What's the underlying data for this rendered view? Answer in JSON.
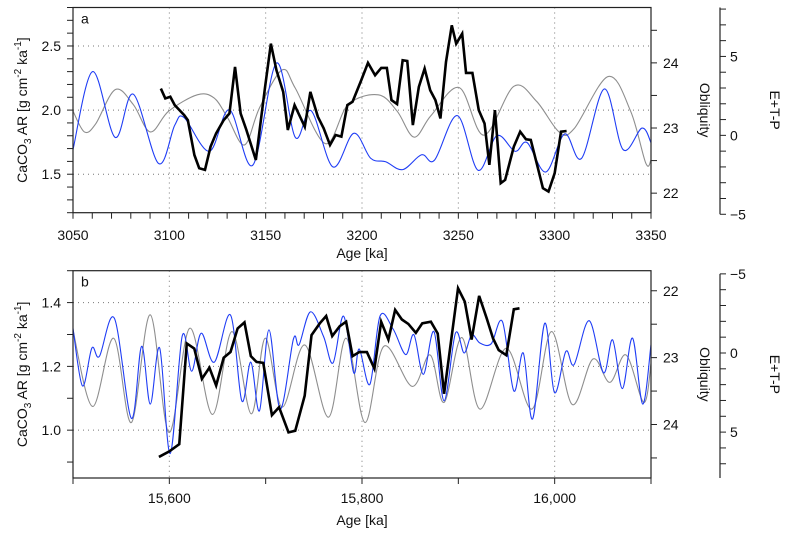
{
  "chart_data": [
    {
      "panel": "a",
      "type": "line",
      "panel_label": "a",
      "xlabel": "Age [ka]",
      "ylabel_parts": {
        "pre": "CaCO",
        "sub": "3",
        "mid": " AR [g cm",
        "sup1": "-2",
        "mid2": " ka",
        "sup2": "-1",
        "end": "]"
      },
      "y2label": "Obliquity",
      "y3label": "E+T-P",
      "xlim": [
        3050,
        3350
      ],
      "xticks": [
        3050,
        3100,
        3150,
        3200,
        3250,
        3300,
        3350
      ],
      "xtick_labels": [
        "3050",
        "3100",
        "3150",
        "3200",
        "3250",
        "3300",
        "3350"
      ],
      "xminor_step": 10,
      "xgrid": [
        3100,
        3150,
        3200,
        3250,
        3300
      ],
      "ylim_top_bottom": [
        2.8,
        1.2
      ],
      "yticks": [
        1.5,
        2.0,
        2.5
      ],
      "ytick_labels": [
        "1.5",
        "2.0",
        "2.5"
      ],
      "yminor_step": 0.1,
      "y2lim_top_bottom": [
        24.85,
        21.7
      ],
      "y2ticks": [
        22,
        23,
        24
      ],
      "y2tick_labels": [
        "22",
        "23",
        "24"
      ],
      "y2minor_step": 0.5,
      "y3lim_top_bottom": [
        8.1,
        -4.9
      ],
      "y3ticks": [
        -5,
        0,
        5
      ],
      "y3tick_labels": [
        "−5",
        "0",
        "5"
      ],
      "y3minor_range": [
        -5,
        8
      ],
      "grid": true,
      "series": [
        {
          "name": "Obliquity",
          "axis": "y2",
          "color": "#8e8e8e",
          "smooth": true,
          "x": [
            3050,
            3055.9,
            3061.7,
            3071.9,
            3081.3,
            3090.1,
            3099.7,
            3114.5,
            3123.3,
            3130.2,
            3139,
            3146.8,
            3158.5,
            3165.4,
            3181,
            3192.8,
            3208.4,
            3218.2,
            3227,
            3235.8,
            3250.5,
            3263.2,
            3278.8,
            3290.6,
            3302.3,
            3310.1,
            3327.7,
            3339.4,
            3347.3,
            3350
          ],
          "y": [
            23.26,
            22.94,
            23.06,
            23.59,
            23.36,
            22.94,
            23.26,
            23.51,
            23.46,
            23.16,
            22.74,
            23.31,
            23.89,
            23.61,
            22.76,
            23.36,
            23.51,
            23.26,
            22.86,
            23.19,
            23.62,
            22.89,
            23.64,
            23.41,
            22.94,
            22.99,
            23.79,
            23.26,
            22.46,
            22.51
          ]
        },
        {
          "name": "E+T-P",
          "axis": "y3",
          "color": "#1f3df5",
          "smooth": true,
          "x": [
            3050,
            3060.2,
            3071.9,
            3081.3,
            3094.4,
            3102.8,
            3107.7,
            3120.8,
            3131.2,
            3143.3,
            3155.6,
            3165.4,
            3173.6,
            3184.9,
            3195.7,
            3204.5,
            3212.3,
            3221.1,
            3230.9,
            3237.7,
            3249.5,
            3260.2,
            3270,
            3279.4,
            3285.7,
            3295.4,
            3305.2,
            3314,
            3325.8,
            3335.5,
            3345.3,
            3350
          ],
          "y": [
            -0.9,
            4.04,
            -0.13,
            2.61,
            -1.78,
            0.64,
            1.12,
            -1.01,
            1.62,
            -1.89,
            4.58,
            -0.13,
            1.56,
            -2.0,
            0.13,
            -1.45,
            -1.67,
            -2.17,
            -1.23,
            -1.56,
            1.25,
            -2.21,
            -0.02,
            -1.01,
            -0.46,
            -2.32,
            0.09,
            -1.45,
            2.94,
            -0.9,
            0.46,
            -0.46
          ]
        },
        {
          "name": "CaCO3 AR",
          "axis": "y",
          "color": "#000000",
          "smooth": false,
          "x": [
            3095.6,
            3097.9,
            3100.5,
            3102.8,
            3107.7,
            3109.6,
            3113,
            3115.5,
            3118.5,
            3121.4,
            3124.3,
            3128.2,
            3131.2,
            3134.1,
            3137,
            3140,
            3144.9,
            3149.7,
            3152.7,
            3155.6,
            3159.1,
            3161.5,
            3165,
            3170.3,
            3173.2,
            3177.1,
            3180.1,
            3183.4,
            3186.3,
            3189.3,
            3192.4,
            3195.1,
            3199.6,
            3203.1,
            3206.8,
            3210,
            3212.9,
            3215.3,
            3218.2,
            3221.1,
            3223.5,
            3226.4,
            3229.5,
            3232.5,
            3235.4,
            3238.1,
            3240.7,
            3243.6,
            3246.6,
            3248.9,
            3252,
            3254,
            3257.3,
            3260.6,
            3263.6,
            3266.1,
            3269,
            3272,
            3274.3,
            3278.8,
            3282.1,
            3285.1,
            3287.6,
            3291.1,
            3293.9,
            3296.8,
            3300,
            3303.3,
            3306.2
          ],
          "y": [
            2.168,
            2.091,
            2.104,
            2.039,
            1.961,
            1.922,
            1.65,
            1.547,
            1.534,
            1.715,
            1.819,
            1.922,
            1.974,
            2.337,
            1.974,
            1.845,
            1.611,
            2.181,
            2.518,
            2.311,
            2.142,
            1.845,
            2.039,
            1.87,
            2.142,
            1.948,
            1.858,
            1.728,
            1.806,
            1.793,
            2.039,
            2.065,
            2.233,
            2.368,
            2.272,
            2.329,
            2.329,
            2.078,
            2.047,
            2.389,
            2.383,
            1.883,
            2.181,
            2.324,
            2.155,
            2.078,
            1.935,
            2.376,
            2.661,
            2.518,
            2.596,
            2.29,
            2.29,
            2.0,
            1.896,
            1.573,
            2.0,
            1.43,
            1.456,
            1.715,
            1.832,
            1.772,
            1.767,
            1.56,
            1.391,
            1.365,
            1.508,
            1.832,
            1.837
          ]
        }
      ]
    },
    {
      "panel": "b",
      "type": "line",
      "panel_label": "b",
      "xlabel": "Age [ka]",
      "ylabel_parts": {
        "pre": "CaCO",
        "sub": "3",
        "mid": " AR [g cm",
        "sup1": "-2",
        "mid2": " ka",
        "sup2": "-1",
        "end": "]"
      },
      "y2label": "Obliquity",
      "y3label": "E+T-P",
      "xlim": [
        15500,
        16100
      ],
      "xticks": [
        15600,
        15800,
        16000
      ],
      "xtick_labels": [
        "15,600",
        "15,800",
        "16,000"
      ],
      "xminor_step": 100,
      "xgrid": [
        15600,
        15800,
        16000
      ],
      "ylim_top_bottom": [
        1.5,
        0.85
      ],
      "yticks": [
        1.0,
        1.2,
        1.4
      ],
      "ytick_labels": [
        "1.0",
        "1.2",
        "1.4"
      ],
      "yminor_step": 0.1,
      "y2lim_top_bottom": [
        21.7,
        24.8
      ],
      "y2ticks": [
        22,
        23,
        24
      ],
      "y2tick_labels": [
        "22",
        "23",
        "24"
      ],
      "y2minor_step": 0.5,
      "y3lim_top_bottom": [
        -5.2,
        7.9
      ],
      "y3ticks": [
        -5,
        0,
        5
      ],
      "y3tick_labels": [
        "−5",
        "0",
        "5"
      ],
      "y3minor_range": [
        -5,
        7
      ],
      "grid": true,
      "series": [
        {
          "name": "Obliquity",
          "axis": "y2",
          "color": "#8e8e8e",
          "smooth": true,
          "x": [
            15500,
            15520.3,
            15542.2,
            15560.6,
            15580.2,
            15599.7,
            15621.2,
            15644.7,
            15665,
            15685,
            15699.5,
            15717.1,
            15740.5,
            15765.2,
            15783.5,
            15803.1,
            15822.7,
            15852,
            15870.8,
            15885.2,
            15903.6,
            15922.4,
            15949.8,
            15976.4,
            15996.7,
            16018.2,
            16039.7,
            16057.3,
            16074.1,
            16092.5,
            16100
          ],
          "y": [
            22.59,
            23.73,
            22.71,
            23.97,
            22.36,
            24.12,
            22.56,
            23.85,
            22.61,
            23.84,
            22.71,
            23.74,
            22.81,
            23.89,
            22.71,
            23.97,
            22.83,
            23.43,
            22.96,
            23.67,
            22.7,
            23.77,
            22.86,
            23.77,
            22.61,
            23.7,
            23.02,
            23.37,
            22.96,
            23.67,
            23.09
          ]
        },
        {
          "name": "E+T-P",
          "axis": "y3",
          "color": "#1f3df5",
          "smooth": true,
          "x": [
            15500,
            15509.8,
            15519.6,
            15527.4,
            15543,
            15560.6,
            15571.2,
            15580.2,
            15590,
            15600.9,
            15613.4,
            15623.2,
            15633,
            15646.7,
            15663.5,
            15675.2,
            15684.6,
            15693.6,
            15703.4,
            15715.1,
            15728.8,
            15734.7,
            15746.4,
            15760.1,
            15769.9,
            15780.8,
            15791.4,
            15797.2,
            15808.2,
            15818.7,
            15832.4,
            15845.3,
            15853.9,
            15863.7,
            15874.7,
            15885.2,
            15897,
            15906,
            15913.8,
            15922.4,
            15934.1,
            15945.8,
            15957.6,
            15967.4,
            15977.1,
            15989.7,
            15999.8,
            16011.6,
            16020.2,
            16035.8,
            16050.7,
            16060.1,
            16070.3,
            16080.8,
            16091.4,
            16100
          ],
          "y": [
            -1.56,
            2.08,
            -0.31,
            0.21,
            -2.19,
            4.13,
            -0.42,
            3.23,
            -0.31,
            6.35,
            -1.08,
            1.15,
            -1.25,
            0.58,
            -2.4,
            3.02,
            0.58,
            3.65,
            -1.46,
            3.54,
            -0.88,
            -0.52,
            -2.6,
            -1.04,
            0.63,
            -2.33,
            1.25,
            -0.25,
            1.98,
            -2.33,
            -1.5,
            0.1,
            -1.15,
            1.35,
            -1.35,
            3.02,
            -1.25,
            0,
            -1.15,
            -0.63,
            -0.58,
            -1.98,
            2.4,
            0,
            4.17,
            -1.88,
            2.5,
            -0.1,
            0.73,
            -2.04,
            1.25,
            -0.83,
            2.25,
            -0.94,
            3.23,
            -0.52
          ]
        },
        {
          "name": "CaCO3 AR",
          "axis": "y",
          "color": "#000000",
          "smooth": false,
          "x": [
            15589.2,
            15599.7,
            15610.3,
            15618.1,
            15625.9,
            15633.8,
            15641.6,
            15648.6,
            15656.4,
            15663.5,
            15670.9,
            15678,
            15684.6,
            15690.5,
            15697.5,
            15706.5,
            15713.9,
            15723.7,
            15730.7,
            15740.5,
            15747.6,
            15756.2,
            15762.8,
            15769.1,
            15776.9,
            15783.5,
            15790.2,
            15797.2,
            15805.1,
            15812.9,
            15819.9,
            15827.4,
            15834.4,
            15841.4,
            15848.1,
            15855.9,
            15862.6,
            15871.5,
            15878.6,
            15885.2,
            15899.7,
            15906.7,
            15913.8,
            15921.6,
            15929.4,
            15936.1,
            15941.9,
            15949.8,
            15957.6,
            15963.5
          ],
          "y": [
            0.916,
            0.933,
            0.956,
            1.272,
            1.256,
            1.161,
            1.196,
            1.14,
            1.227,
            1.245,
            1.319,
            1.338,
            1.232,
            1.214,
            1.211,
            1.047,
            1.072,
            0.993,
            0.998,
            1.108,
            1.298,
            1.335,
            1.358,
            1.295,
            1.326,
            1.34,
            1.232,
            1.245,
            1.245,
            1.193,
            1.34,
            1.284,
            1.377,
            1.347,
            1.333,
            1.305,
            1.335,
            1.34,
            1.303,
            1.114,
            1.445,
            1.403,
            1.284,
            1.421,
            1.351,
            1.287,
            1.251,
            1.235,
            1.379,
            1.382
          ]
        }
      ]
    }
  ]
}
